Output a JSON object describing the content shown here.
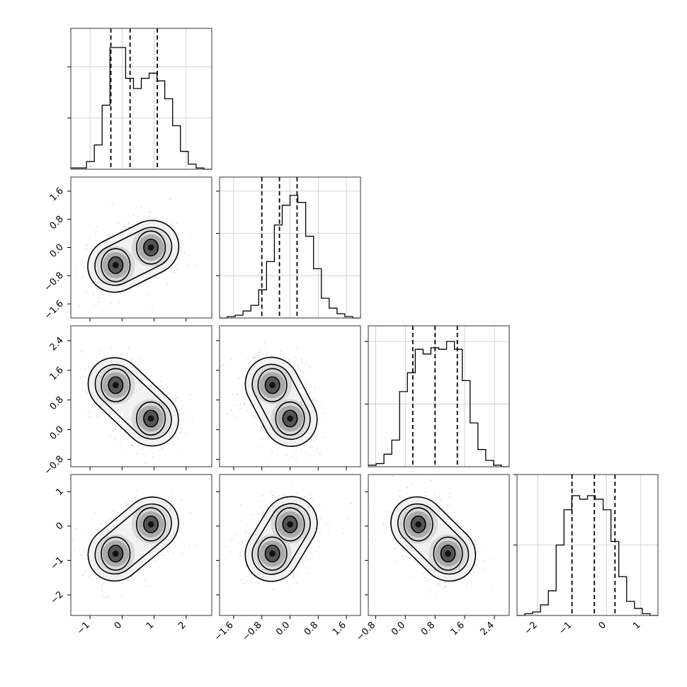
{
  "chart_data": {
    "type": "corner",
    "variables": [
      {
        "range": [
          -1.6,
          2.8
        ],
        "ticks": [
          -1,
          0,
          1,
          2
        ],
        "tick_labels": [
          "−1",
          "0",
          "1",
          "2"
        ],
        "quantiles": [
          -0.35,
          0.25,
          1.1
        ],
        "hist": [
          1,
          1,
          6,
          19,
          50,
          95,
          95,
          71,
          63,
          71,
          75,
          69,
          55,
          34,
          14,
          4,
          1,
          0
        ],
        "hist_ylim": [
          0,
          110
        ],
        "hist_grid": [
          40,
          80
        ]
      },
      {
        "range": [
          -2.0,
          2.0
        ],
        "ticks": [
          -1.6,
          -0.8,
          0.0,
          0.8,
          1.6
        ],
        "tick_labels": [
          "−1.6",
          "−0.8",
          "0.0",
          "0.8",
          "1.6"
        ],
        "quantiles": [
          -0.8,
          -0.3,
          0.2
        ],
        "hist": [
          0,
          1,
          2,
          5,
          9,
          20,
          40,
          66,
          80,
          87,
          82,
          58,
          35,
          14,
          7,
          3,
          1,
          0
        ],
        "hist_ylim": [
          0,
          100
        ],
        "hist_grid": [
          30,
          60,
          90
        ]
      },
      {
        "range": [
          -1.0,
          2.8
        ],
        "ticks": [
          -0.8,
          0.0,
          0.8,
          1.6,
          2.4
        ],
        "tick_labels": [
          "−0.8",
          "0.0",
          "0.8",
          "1.6",
          "2.4"
        ],
        "quantiles": [
          0.2,
          0.8,
          1.4
        ],
        "hist": [
          1,
          2,
          8,
          17,
          48,
          60,
          75,
          72,
          76,
          75,
          80,
          75,
          55,
          28,
          11,
          4,
          1,
          0
        ],
        "hist_ylim": [
          0,
          90
        ],
        "hist_grid": [
          40,
          80
        ]
      },
      {
        "range": [
          -2.6,
          1.5
        ],
        "ticks": [
          -2,
          -1,
          0,
          1
        ],
        "tick_labels": [
          "−2",
          "−1",
          "0",
          "1"
        ],
        "quantiles": [
          -1.0,
          -0.35,
          0.25
        ],
        "hist": [
          0,
          1,
          2,
          6,
          14,
          40,
          60,
          68,
          66,
          68,
          66,
          60,
          42,
          22,
          8,
          4,
          1,
          0
        ],
        "hist_ylim": [
          0,
          80
        ],
        "hist_grid": [
          40,
          80
        ]
      }
    ],
    "y_tick_labels": {
      "1": [
        "−1.6",
        "−0.8",
        "0.0",
        "0.8",
        "1.6"
      ],
      "2": [
        "−0.8",
        "0.0",
        "0.8",
        "1.6",
        "2.4"
      ],
      "3": [
        "−2",
        "−1",
        "0",
        "1"
      ]
    },
    "pair_modes": [
      {
        "row": 1,
        "col": 0,
        "modes": [
          [
            -0.2,
            -0.5
          ],
          [
            0.9,
            0.0
          ]
        ]
      },
      {
        "row": 2,
        "col": 0,
        "modes": [
          [
            -0.2,
            1.2
          ],
          [
            0.9,
            0.3
          ]
        ]
      },
      {
        "row": 2,
        "col": 1,
        "modes": [
          [
            -0.5,
            1.2
          ],
          [
            0.0,
            0.3
          ]
        ]
      },
      {
        "row": 3,
        "col": 0,
        "modes": [
          [
            -0.2,
            -0.8
          ],
          [
            0.9,
            0.05
          ]
        ]
      },
      {
        "row": 3,
        "col": 1,
        "modes": [
          [
            -0.5,
            -0.8
          ],
          [
            0.0,
            0.05
          ]
        ]
      },
      {
        "row": 3,
        "col": 2,
        "modes": [
          [
            0.35,
            0.05
          ],
          [
            1.15,
            -0.8
          ]
        ]
      }
    ],
    "colors": {
      "line": "#000000",
      "grid": "#c8c8c8",
      "points": "#8c8c8c",
      "frame": "#333333"
    },
    "grid": true
  }
}
